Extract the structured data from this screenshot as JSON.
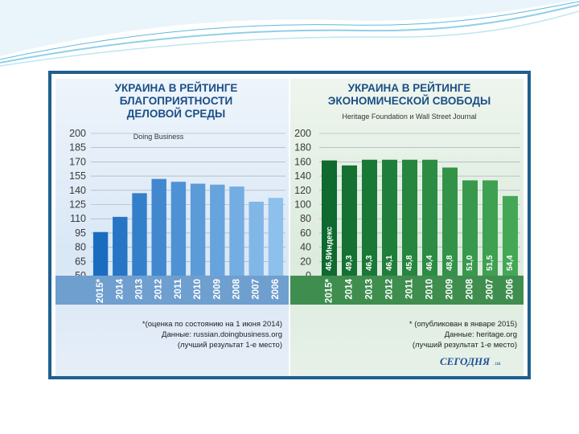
{
  "colors": {
    "frame": "#1e5f8f",
    "left_bar_dark": "#1a6cc0",
    "left_bar_light": "#8ec0ec",
    "left_xband": "#6f9fcf",
    "right_bar_dark": "#0e6a2e",
    "right_bar_light": "#44a755",
    "right_xband": "#3f8e4f"
  },
  "chart_data": [
    {
      "type": "bar",
      "title_lines": [
        "УКРАИНА В РЕЙТИНГЕ",
        "БЛАГОПРИЯТНОСТИ",
        "ДЕЛОВОЙ СРЕДЫ"
      ],
      "subtitle": "Doing Business",
      "categories": [
        "2015*",
        "2014",
        "2013",
        "2012",
        "2011",
        "2010",
        "2009",
        "2008",
        "2007",
        "2006"
      ],
      "values": [
        96,
        112,
        137,
        152,
        149,
        147,
        146,
        144,
        128,
        132
      ],
      "yticks": [
        200,
        185,
        170,
        155,
        140,
        125,
        110,
        95,
        80,
        65,
        50
      ],
      "ylim": [
        50,
        200
      ],
      "bar_labels": [],
      "notes": [
        "*(оценка по состоянию на 1 июня 2014)",
        "Данные: russian.doingbusiness.org",
        "(лучший результат 1-е место)"
      ]
    },
    {
      "type": "bar",
      "title_lines": [
        "УКРАИНА В РЕЙТИНГЕ",
        "ЭКОНОМИЧЕСКОЙ СВОБОДЫ"
      ],
      "subtitle": "Heritage Foundation и Wall Street Journal",
      "categories": [
        "2015*",
        "2014",
        "2013",
        "2012",
        "2011",
        "2010",
        "2009",
        "2008",
        "2007",
        "2006"
      ],
      "values": [
        162,
        155,
        163,
        163,
        163,
        163,
        152,
        134,
        134,
        112
      ],
      "yticks": [
        200,
        180,
        160,
        140,
        120,
        100,
        80,
        60,
        40,
        20,
        0
      ],
      "ylim": [
        0,
        200
      ],
      "bar_labels": [
        "46,9",
        "49,3",
        "46,3",
        "46,1",
        "45,8",
        "46,4",
        "48,8",
        "51,0",
        "51,5",
        "54,4"
      ],
      "first_bar_suffix": "Индекс",
      "notes": [
        "* (опубликован в январе 2015)",
        "Данные: heritage.org",
        "(лучший результат 1-е место)"
      ]
    }
  ],
  "logo": {
    "text": "СЕГОДНЯ",
    "suffix": ".ua"
  }
}
